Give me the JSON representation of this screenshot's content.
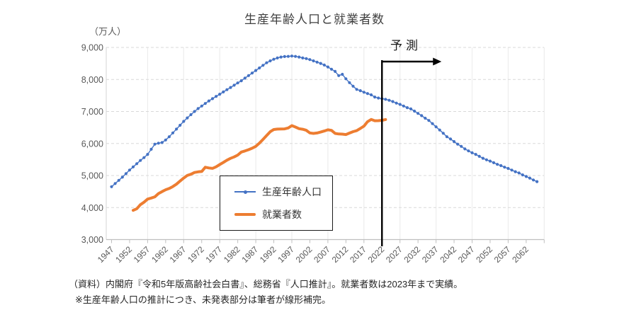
{
  "title": "生産年齢人口と就業者数",
  "footnotes": {
    "line1": "（資料）内閣府『令和5年版高齢社会白書』、総務省『人口推計』。就業者数は2023年まで実績。",
    "line2": "※生産年齢人口の推計につき、未発表部分は筆者が線形補完。"
  },
  "colors": {
    "working_age_blue": "#4472C4",
    "employed_orange": "#ED7D31",
    "gridline_dashed": "#D9D9D9",
    "gridline_vertical": "#EDEDED",
    "axis_line": "#BFBFBF",
    "axis_text": "#595959",
    "forecast_black": "#000000"
  },
  "chart_data": {
    "type": "line",
    "title": "生産年齢人口と就業者数",
    "ylabel": "（万人）",
    "ylim": [
      3000,
      9000
    ],
    "y_ticks": [
      3000,
      4000,
      5000,
      6000,
      7000,
      8000,
      9000
    ],
    "x_tick_label_years": [
      1947,
      1952,
      1957,
      1962,
      1967,
      1972,
      1977,
      1982,
      1987,
      1992,
      1997,
      2002,
      2007,
      2012,
      2017,
      2022,
      2027,
      2032,
      2037,
      2042,
      2047,
      2052,
      2057,
      2062
    ],
    "x_gridline_years": [
      1957,
      1967,
      1977,
      1987,
      1997,
      2007,
      2017,
      2027,
      2037,
      2047,
      2057,
      2067
    ],
    "x_axis_range": [
      1945.5,
      2067
    ],
    "grid": "horizontal dashed every 1000, vertical light every 10 years",
    "legend_position": "inside lower-center box",
    "forecast": {
      "label": "予測",
      "at_year": 2022
    },
    "series": [
      {
        "name": "生産年齢人口",
        "color": "#4472C4",
        "marker": "circle",
        "line_width": 1.4,
        "x_start": 1947,
        "x_end": 2065,
        "values": [
          4650,
          4750,
          4850,
          4950,
          5060,
          5170,
          5270,
          5370,
          5470,
          5560,
          5660,
          5820,
          5980,
          6010,
          6030,
          6110,
          6210,
          6330,
          6450,
          6570,
          6690,
          6800,
          6900,
          7000,
          7090,
          7170,
          7250,
          7330,
          7400,
          7470,
          7540,
          7610,
          7680,
          7750,
          7820,
          7890,
          7960,
          8040,
          8120,
          8200,
          8280,
          8360,
          8440,
          8520,
          8580,
          8630,
          8670,
          8700,
          8716,
          8720,
          8730,
          8720,
          8700,
          8670,
          8650,
          8620,
          8580,
          8540,
          8500,
          8450,
          8390,
          8320,
          8250,
          8120,
          8160,
          8020,
          7900,
          7790,
          7690,
          7650,
          7600,
          7560,
          7520,
          7450,
          7420,
          7400,
          7380,
          7350,
          7310,
          7260,
          7220,
          7170,
          7120,
          7080,
          7010,
          6940,
          6870,
          6790,
          6720,
          6620,
          6520,
          6420,
          6320,
          6210,
          6140,
          6060,
          5980,
          5910,
          5830,
          5770,
          5710,
          5660,
          5600,
          5540,
          5490,
          5450,
          5400,
          5350,
          5310,
          5260,
          5220,
          5170,
          5120,
          5080,
          5020,
          4970,
          4920,
          4860,
          4810
        ]
      },
      {
        "name": "就業者数",
        "color": "#ED7D31",
        "marker": "none",
        "line_width": 4,
        "x_start": 1953,
        "x_end": 2023,
        "values": [
          3913,
          3963,
          4090,
          4166,
          4263,
          4298,
          4335,
          4436,
          4498,
          4556,
          4595,
          4655,
          4730,
          4827,
          4920,
          5002,
          5040,
          5094,
          5114,
          5126,
          5259,
          5237,
          5223,
          5271,
          5342,
          5408,
          5479,
          5536,
          5581,
          5638,
          5733,
          5766,
          5807,
          5853,
          5911,
          6011,
          6128,
          6249,
          6369,
          6436,
          6450,
          6453,
          6457,
          6486,
          6557,
          6514,
          6462,
          6446,
          6412,
          6330,
          6316,
          6329,
          6356,
          6389,
          6427,
          6409,
          6314,
          6298,
          6293,
          6280,
          6326,
          6371,
          6402,
          6470,
          6542,
          6682,
          6750,
          6710,
          6713,
          6723,
          6747
        ]
      }
    ]
  }
}
